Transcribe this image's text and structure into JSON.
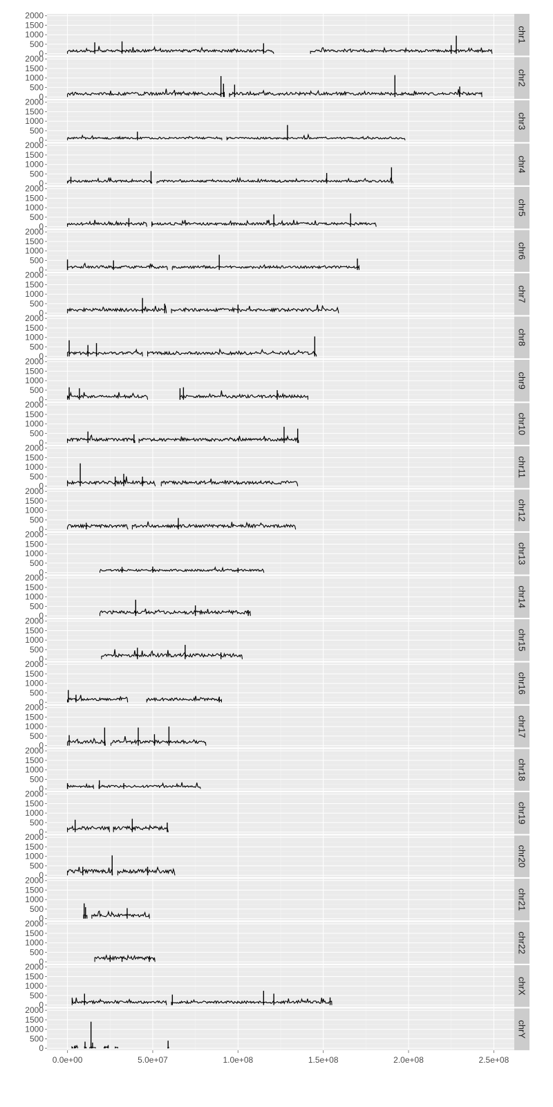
{
  "chart_data": {
    "type": "line",
    "title": "",
    "xlabel": "",
    "ylabel": "",
    "facet_by": "chromosome",
    "xlim": [
      -12000000,
      262000000
    ],
    "ylim": [
      -100,
      2100
    ],
    "x_ticks": [
      0,
      50000000,
      100000000,
      150000000,
      200000000,
      250000000
    ],
    "x_tick_labels": [
      "0.0e+00",
      "5.0e+07",
      "1.0e+08",
      "1.5e+08",
      "2.0e+08",
      "2.5e+08"
    ],
    "y_ticks": [
      0,
      500,
      1000,
      1500,
      2000
    ],
    "y_tick_labels": [
      "0",
      "500",
      "1000",
      "1500",
      "2000"
    ],
    "grid": true,
    "panels": [
      {
        "name": "chr1",
        "segments": [
          [
            0,
            121000000
          ],
          [
            142500000,
            249000000
          ]
        ],
        "baseline": 150,
        "spikes": [
          [
            16000000,
            600
          ],
          [
            32000000,
            650
          ],
          [
            115000000,
            550
          ],
          [
            228000000,
            950
          ],
          [
            225000000,
            450
          ]
        ]
      },
      {
        "name": "chr2",
        "segments": [
          [
            0,
            92000000
          ],
          [
            95000000,
            243000000
          ]
        ],
        "baseline": 170,
        "spikes": [
          [
            90000000,
            1100
          ],
          [
            91500000,
            700
          ],
          [
            192000000,
            1150
          ],
          [
            98000000,
            650
          ],
          [
            230000000,
            550
          ]
        ]
      },
      {
        "name": "chr3",
        "segments": [
          [
            0,
            90500000
          ],
          [
            93500000,
            198000000
          ]
        ],
        "baseline": 110,
        "spikes": [
          [
            41000000,
            450
          ],
          [
            129000000,
            800
          ]
        ]
      },
      {
        "name": "chr4",
        "segments": [
          [
            0,
            49500000
          ],
          [
            52500000,
            191000000
          ]
        ],
        "baseline": 120,
        "spikes": [
          [
            49000000,
            650
          ],
          [
            190000000,
            850
          ],
          [
            152000000,
            550
          ],
          [
            2000000,
            350
          ]
        ]
      },
      {
        "name": "chr5",
        "segments": [
          [
            0,
            46500000
          ],
          [
            49500000,
            181000000
          ]
        ],
        "baseline": 150,
        "spikes": [
          [
            121000000,
            650
          ],
          [
            166000000,
            700
          ],
          [
            36000000,
            450
          ]
        ]
      },
      {
        "name": "chr6",
        "segments": [
          [
            0,
            58700000
          ],
          [
            61500000,
            171000000
          ]
        ],
        "baseline": 150,
        "spikes": [
          [
            89000000,
            800
          ],
          [
            0,
            550
          ],
          [
            170000000,
            600
          ],
          [
            27000000,
            500
          ]
        ]
      },
      {
        "name": "chr7",
        "segments": [
          [
            0,
            58000000
          ],
          [
            61000000,
            159000000
          ]
        ],
        "baseline": 170,
        "spikes": [
          [
            44000000,
            800
          ],
          [
            57000000,
            500
          ],
          [
            100000000,
            450
          ]
        ]
      },
      {
        "name": "chr8",
        "segments": [
          [
            0,
            44000000
          ],
          [
            47000000,
            146000000
          ]
        ],
        "baseline": 170,
        "spikes": [
          [
            1000000,
            850
          ],
          [
            145000000,
            1050
          ],
          [
            12000000,
            600
          ],
          [
            17000000,
            700
          ]
        ]
      },
      {
        "name": "chr9",
        "segments": [
          [
            0,
            47000000
          ],
          [
            66000000,
            141000000
          ]
        ],
        "baseline": 170,
        "spikes": [
          [
            1000000,
            650
          ],
          [
            7000000,
            600
          ],
          [
            66000000,
            600
          ],
          [
            68000000,
            650
          ],
          [
            123000000,
            500
          ]
        ]
      },
      {
        "name": "chr10",
        "segments": [
          [
            0,
            39500000
          ],
          [
            42000000,
            135500000
          ]
        ],
        "baseline": 170,
        "spikes": [
          [
            12000000,
            600
          ],
          [
            127000000,
            850
          ],
          [
            135000000,
            750
          ],
          [
            39000000,
            450
          ]
        ]
      },
      {
        "name": "chr11",
        "segments": [
          [
            0,
            51500000
          ],
          [
            55000000,
            135000000
          ]
        ],
        "baseline": 190,
        "spikes": [
          [
            7500000,
            1200
          ],
          [
            33000000,
            650
          ],
          [
            28000000,
            500
          ],
          [
            44000000,
            500
          ]
        ]
      },
      {
        "name": "chr12",
        "segments": [
          [
            0,
            35500000
          ],
          [
            38000000,
            133800000
          ]
        ],
        "baseline": 180,
        "spikes": [
          [
            65000000,
            600
          ],
          [
            11000000,
            350
          ]
        ]
      },
      {
        "name": "chr13",
        "segments": [
          [
            19000000,
            115200000
          ]
        ],
        "baseline": 120,
        "spikes": [
          [
            32000000,
            300
          ],
          [
            50000000,
            320
          ],
          [
            100000000,
            250
          ]
        ]
      },
      {
        "name": "chr14",
        "segments": [
          [
            19000000,
            107300000
          ]
        ],
        "baseline": 190,
        "spikes": [
          [
            40000000,
            850
          ],
          [
            75000000,
            550
          ],
          [
            106000000,
            300
          ]
        ]
      },
      {
        "name": "chr15",
        "segments": [
          [
            20000000,
            102500000
          ]
        ],
        "baseline": 200,
        "spikes": [
          [
            69000000,
            750
          ],
          [
            41000000,
            600
          ],
          [
            90000000,
            350
          ]
        ]
      },
      {
        "name": "chr16",
        "segments": [
          [
            0,
            35300000
          ],
          [
            46500000,
            90300000
          ]
        ],
        "baseline": 160,
        "spikes": [
          [
            500000,
            650
          ],
          [
            5000000,
            400
          ],
          [
            89000000,
            300
          ]
        ]
      },
      {
        "name": "chr17",
        "segments": [
          [
            0,
            22200000
          ],
          [
            25500000,
            81200000
          ]
        ],
        "baseline": 200,
        "spikes": [
          [
            21800000,
            950
          ],
          [
            41500000,
            950
          ],
          [
            59500000,
            1000
          ],
          [
            1000000,
            550
          ],
          [
            51000000,
            600
          ]
        ]
      },
      {
        "name": "chr18",
        "segments": [
          [
            0,
            15400000
          ],
          [
            18500000,
            78000000
          ]
        ],
        "baseline": 130,
        "spikes": [
          [
            18700000,
            450
          ],
          [
            0,
            300
          ],
          [
            33000000,
            300
          ]
        ]
      },
      {
        "name": "chr19",
        "segments": [
          [
            0,
            24700000
          ],
          [
            27000000,
            59100000
          ]
        ],
        "baseline": 210,
        "spikes": [
          [
            4500000,
            650
          ],
          [
            38000000,
            700
          ],
          [
            58500000,
            500
          ]
        ]
      },
      {
        "name": "chr20",
        "segments": [
          [
            0,
            26400000
          ],
          [
            29500000,
            63000000
          ]
        ],
        "baseline": 210,
        "spikes": [
          [
            26200000,
            1050
          ],
          [
            9000000,
            450
          ],
          [
            47000000,
            450
          ]
        ]
      },
      {
        "name": "chr21",
        "segments": [
          [
            9500000,
            11500000
          ],
          [
            14300000,
            48100000
          ]
        ],
        "baseline": 170,
        "spikes": [
          [
            9800000,
            800
          ],
          [
            10600000,
            600
          ],
          [
            35000000,
            550
          ]
        ]
      },
      {
        "name": "chr22",
        "segments": [
          [
            16000000,
            51300000
          ]
        ],
        "baseline": 190,
        "spikes": [
          [
            25000000,
            350
          ],
          [
            32000000,
            280
          ],
          [
            48000000,
            300
          ]
        ]
      },
      {
        "name": "chrX",
        "segments": [
          [
            2700000,
            58100000
          ],
          [
            61000000,
            155000000
          ]
        ],
        "baseline": 150,
        "spikes": [
          [
            10000000,
            600
          ],
          [
            115000000,
            750
          ],
          [
            121000000,
            600
          ],
          [
            61500000,
            550
          ],
          [
            154000000,
            400
          ]
        ]
      },
      {
        "name": "chrY",
        "segments": [
          [
            2600000,
            3200000
          ],
          [
            4000000,
            6000000
          ],
          [
            10000000,
            11000000
          ],
          [
            13000000,
            14000000
          ],
          [
            14000000,
            16500000
          ],
          [
            21500000,
            24000000
          ],
          [
            28000000,
            29500000
          ],
          [
            58800000,
            59300000
          ]
        ],
        "baseline": 60,
        "spikes": [
          [
            13800000,
            1400
          ],
          [
            10300000,
            350
          ],
          [
            14700000,
            300
          ],
          [
            59000000,
            400
          ],
          [
            4500000,
            150
          ],
          [
            22000000,
            120
          ]
        ]
      }
    ]
  }
}
